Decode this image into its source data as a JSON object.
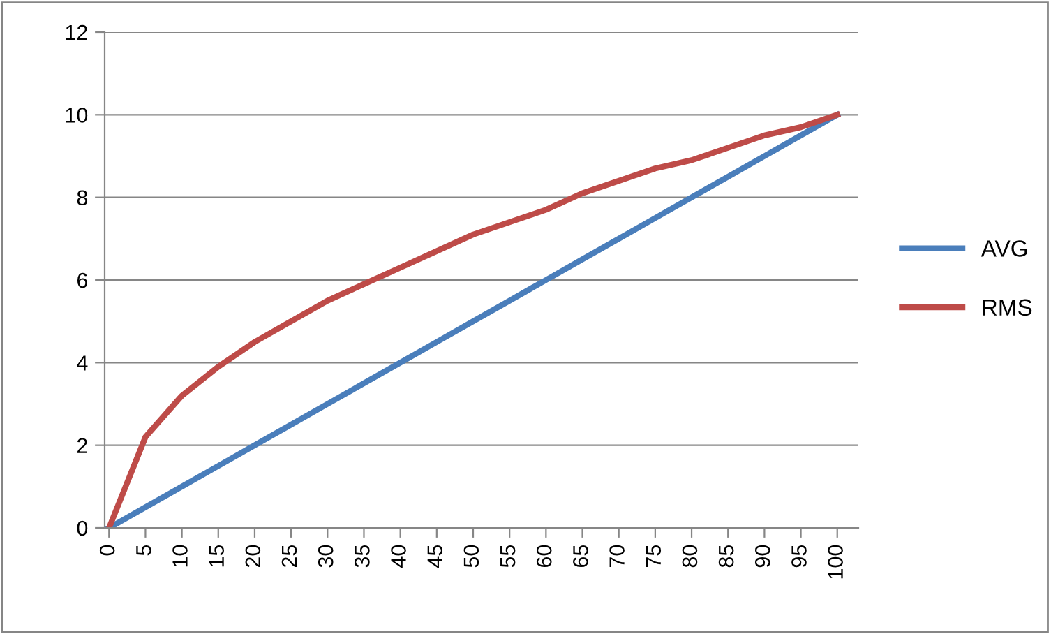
{
  "chart_data": {
    "type": "line",
    "categories": [
      "0",
      "5",
      "10",
      "15",
      "20",
      "25",
      "30",
      "35",
      "40",
      "45",
      "50",
      "55",
      "60",
      "65",
      "70",
      "75",
      "80",
      "85",
      "90",
      "95",
      "100"
    ],
    "series": [
      {
        "name": "AVG",
        "color": "#4a7ebb",
        "values": [
          0,
          0.5,
          1,
          1.5,
          2,
          2.5,
          3,
          3.5,
          4,
          4.5,
          5,
          5.5,
          6,
          6.5,
          7,
          7.5,
          8,
          8.5,
          9,
          9.5,
          10
        ]
      },
      {
        "name": "RMS",
        "color": "#be4b48",
        "values": [
          0,
          2.2,
          3.2,
          3.9,
          4.5,
          5,
          5.5,
          5.9,
          6.3,
          6.7,
          7.1,
          7.4,
          7.7,
          8.1,
          8.4,
          8.7,
          8.9,
          9.2,
          9.5,
          9.7,
          10
        ]
      }
    ],
    "ylim": [
      0,
      12
    ],
    "yticks": [
      0,
      2,
      4,
      6,
      8,
      10,
      12
    ],
    "grid": "y",
    "legend": "right",
    "marker": "none",
    "line_style": "solid"
  }
}
